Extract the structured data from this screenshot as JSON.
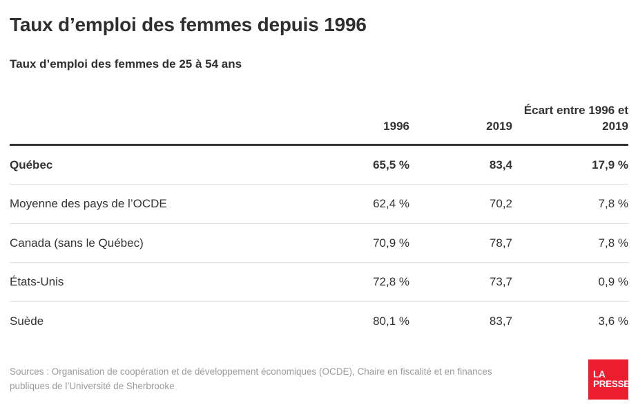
{
  "header": {
    "title": "Taux d’emploi des femmes depuis 1996",
    "subtitle": "Taux d’emploi des femmes de 25 à 54 ans"
  },
  "chart_data": {
    "type": "table",
    "columns": [
      "",
      "1996",
      "2019",
      "Écart entre 1996 et 2019"
    ],
    "column_headers": {
      "col_1996": "1996",
      "col_2019": "2019",
      "col_ecart": "Écart entre 1996 et 2019"
    },
    "rows": [
      {
        "label": "Québec",
        "v1996": "65,5 %",
        "v2019": "83,4",
        "ecart": "17,9 %",
        "bold": true
      },
      {
        "label": "Moyenne des pays de l’OCDE",
        "v1996": "62,4 %",
        "v2019": "70,2",
        "ecart": "7,8 %",
        "bold": false
      },
      {
        "label": "Canada (sans le Québec)",
        "v1996": "70,9 %",
        "v2019": "78,7",
        "ecart": "7,8 %",
        "bold": false
      },
      {
        "label": "États-Unis",
        "v1996": "72,8 %",
        "v2019": "73,7",
        "ecart": "0,9 %",
        "bold": false
      },
      {
        "label": "Suède",
        "v1996": "80,1 %",
        "v2019": "83,7",
        "ecart": "3,6 %",
        "bold": false
      }
    ]
  },
  "footer": {
    "sources": "Sources : Organisation de coopération et de développement économiques (OCDE), Chaire en fiscalité et en finances publiques de l’Université de Sherbrooke",
    "logo_line1": "LA",
    "logo_line2": "PRESSE"
  },
  "colors": {
    "text_dark": "#333333",
    "text_gray": "#9b9b9b",
    "rule_dark": "#333333",
    "rule_light": "#e1e1e1",
    "brand_red": "#ed1c2e",
    "background": "#ffffff"
  }
}
